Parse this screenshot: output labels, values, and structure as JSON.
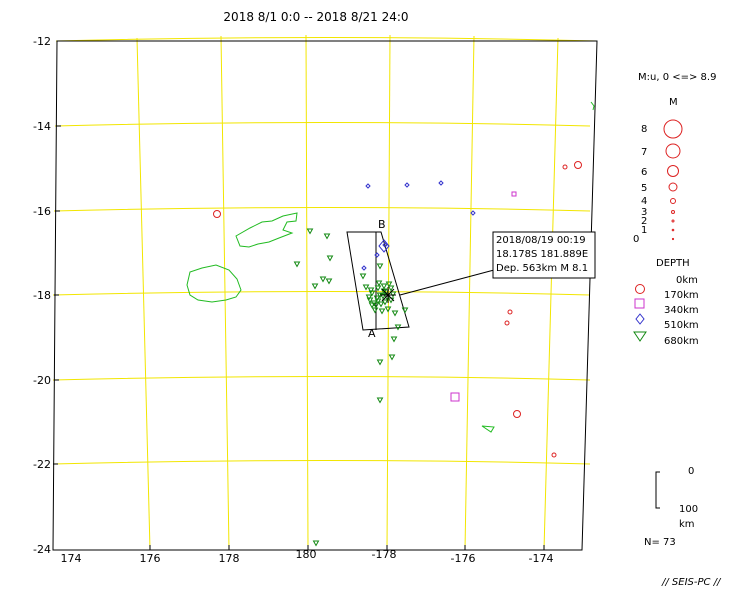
{
  "title": "2018 8/1 0:0 -- 2018 8/21 24:0",
  "y_labels": [
    "-12",
    "-14",
    "-16",
    "-18",
    "-20",
    "-22",
    "-24"
  ],
  "x_labels": [
    "174",
    "176",
    "178",
    "180",
    "-178",
    "-176",
    "-174"
  ],
  "infobox": {
    "line1": "2018/08/19 00:19",
    "line2": "18.178S   181.889E",
    "line3": "Dep. 563km    M 8.1"
  },
  "section_labels": {
    "a": "A",
    "b": "B"
  },
  "legend": {
    "mag_title": "M:u, 0 <=> 8.9",
    "m_heading": "M",
    "mag_levels": [
      "8",
      "7",
      "6",
      "5",
      "4",
      "3",
      "2",
      "1",
      "0"
    ],
    "depth_heading": "DEPTH",
    "depth_levels": [
      "0km",
      "170km",
      "340km",
      "510km",
      "680km"
    ],
    "scale_top": "0",
    "scale_bottom": "100",
    "scale_unit": "km"
  },
  "count": "N= 73",
  "footer": "// SEIS-PC //",
  "colors": {
    "grid": "#f2e600",
    "coast": "#22bb22",
    "shallow": "#dd2222",
    "d170": "#cc33cc",
    "d340": "#3333cc",
    "d510": "#118811"
  }
}
